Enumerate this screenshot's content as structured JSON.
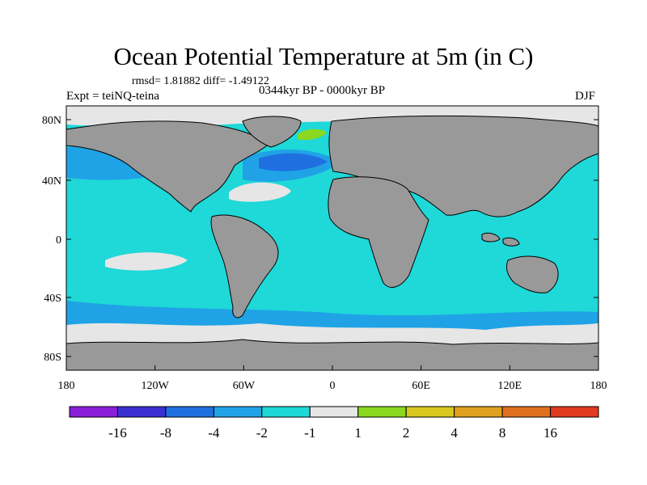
{
  "title": "Ocean Potential Temperature at 5m (in C)",
  "stats": "rmsd= 1.81882 diff= -1.49122",
  "experiment": "Expt = teiNQ-teina",
  "period": "0344kyr BP - 0000kyr BP",
  "season": "DJF",
  "y_ticks": [
    "80N",
    "40N",
    "0",
    "40S",
    "80S"
  ],
  "x_ticks": [
    "180",
    "120W",
    "60W",
    "0",
    "60E",
    "120E",
    "180"
  ],
  "colorbar": {
    "colors": [
      "#8a1fd8",
      "#3b2fd2",
      "#1f6fe0",
      "#1fa3e6",
      "#1fd8d8",
      "#e6e6e6",
      "#8ad81f",
      "#d8c81f",
      "#e0a01f",
      "#e0701f",
      "#e03a1f"
    ],
    "labels": [
      "-16",
      "-8",
      "-4",
      "-2",
      "-1",
      "1",
      "2",
      "4",
      "8",
      "16"
    ]
  },
  "palette": {
    "land": "#999999",
    "ocean": "#1fd8d8",
    "cooler": "#1fa3e6",
    "coolest": "#1f6fe0",
    "neutral": "#e6e6e6",
    "warm": "#8ad81f"
  }
}
